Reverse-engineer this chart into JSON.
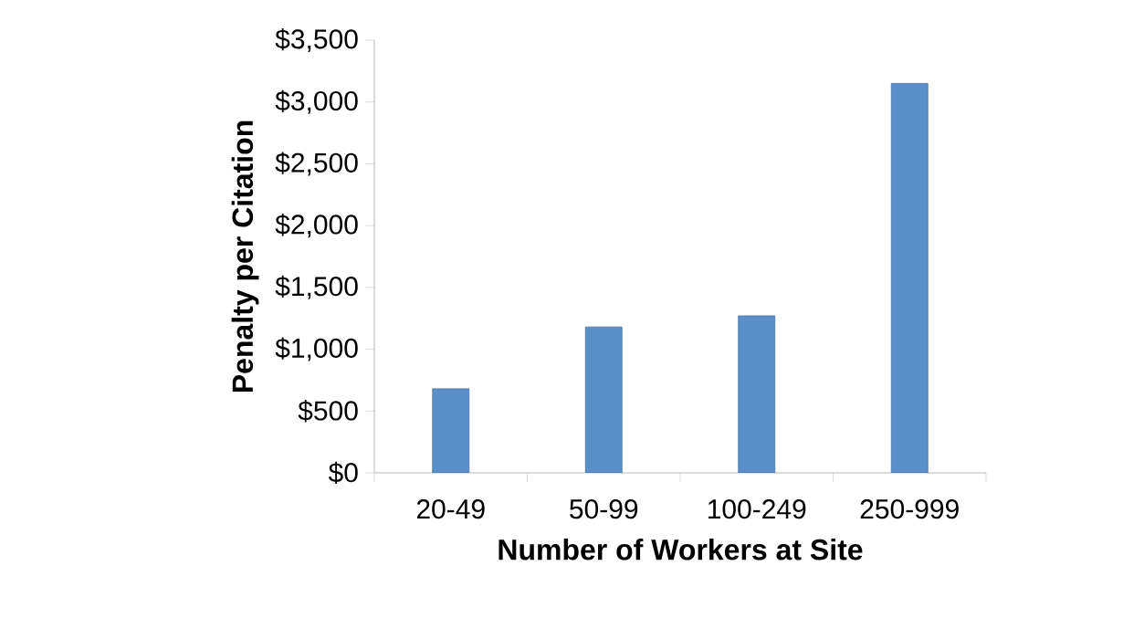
{
  "chart_data": {
    "type": "bar",
    "xlabel": "Number of Workers at Site",
    "ylabel": "Penalty per Citation",
    "categories": [
      "20-49",
      "50-99",
      "100-249",
      "250-999"
    ],
    "values": [
      680,
      1180,
      1270,
      3150
    ],
    "color": "#5b8fc9",
    "ylim": [
      0,
      3500
    ],
    "yticks": [
      {
        "value": 0,
        "label": "$0"
      },
      {
        "value": 500,
        "label": "$500"
      },
      {
        "value": 1000,
        "label": "$1,000"
      },
      {
        "value": 1500,
        "label": "$1,500"
      },
      {
        "value": 2000,
        "label": "$2,000"
      },
      {
        "value": 2500,
        "label": "$2,500"
      },
      {
        "value": 3000,
        "label": "$3,000"
      },
      {
        "value": 3500,
        "label": "$3,500"
      }
    ],
    "tick_labels": "xy"
  }
}
